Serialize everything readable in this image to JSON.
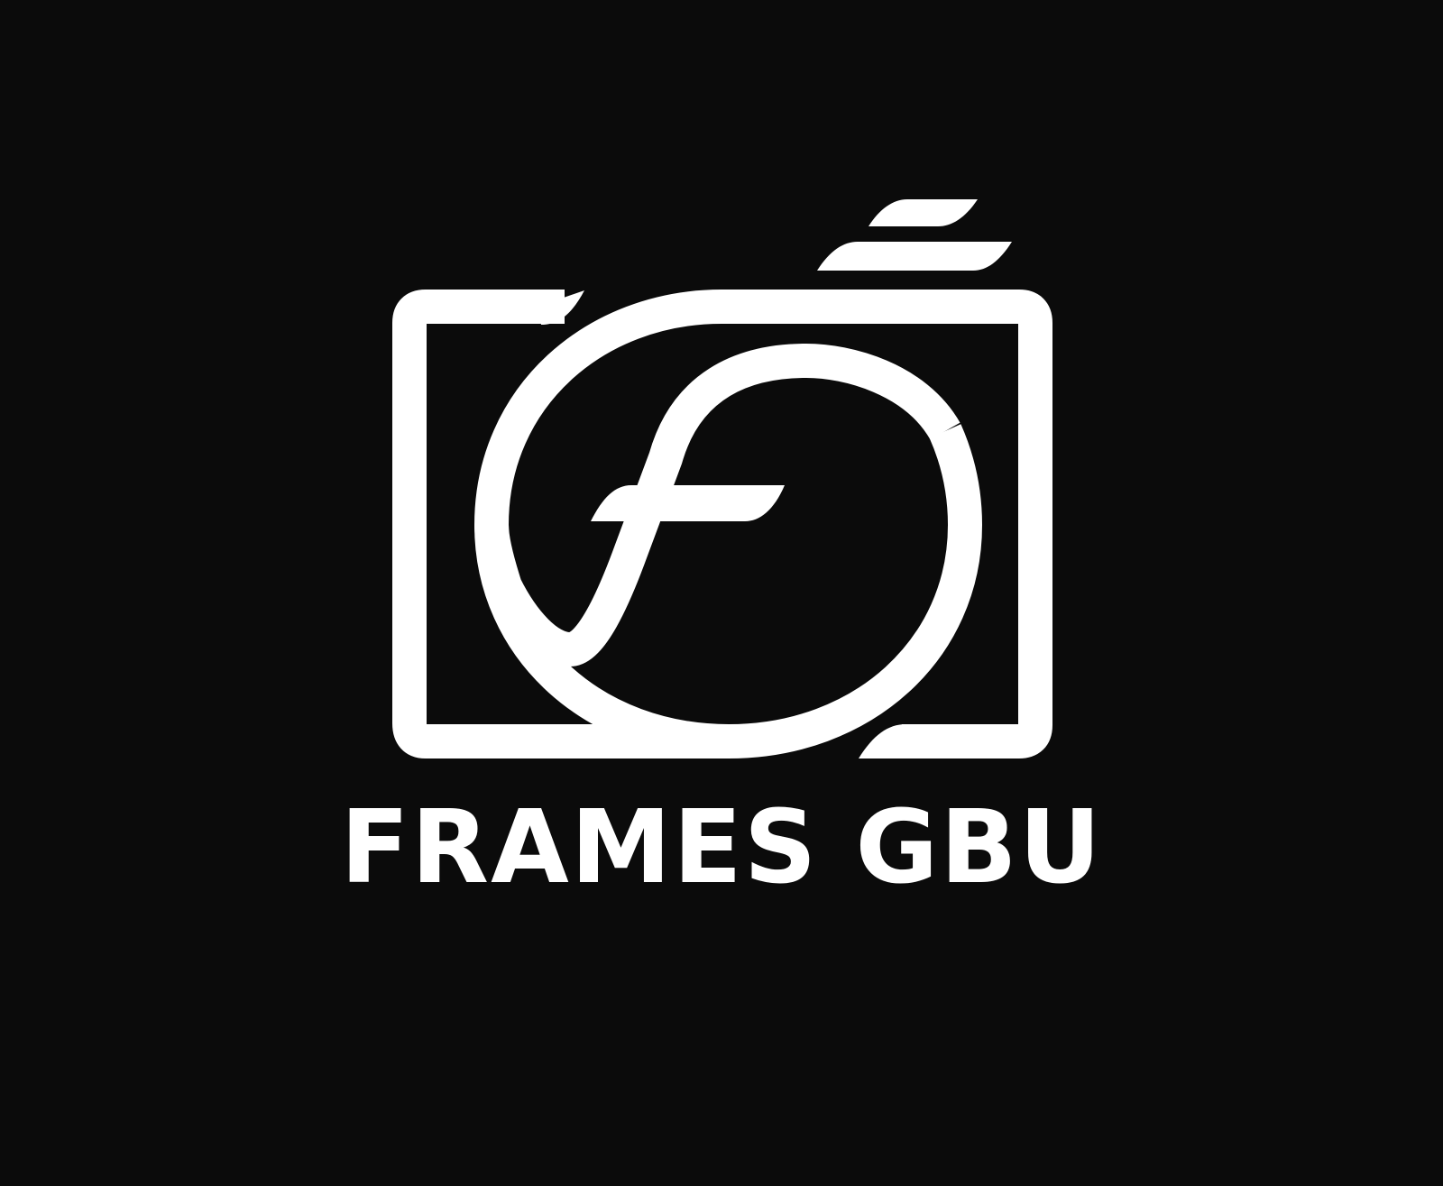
{
  "brand": {
    "name": "FRAMES GBU",
    "logo_icon": "camera-f-logo-icon",
    "colors": {
      "background": "#0b0b0b",
      "foreground": "#ffffff"
    }
  }
}
